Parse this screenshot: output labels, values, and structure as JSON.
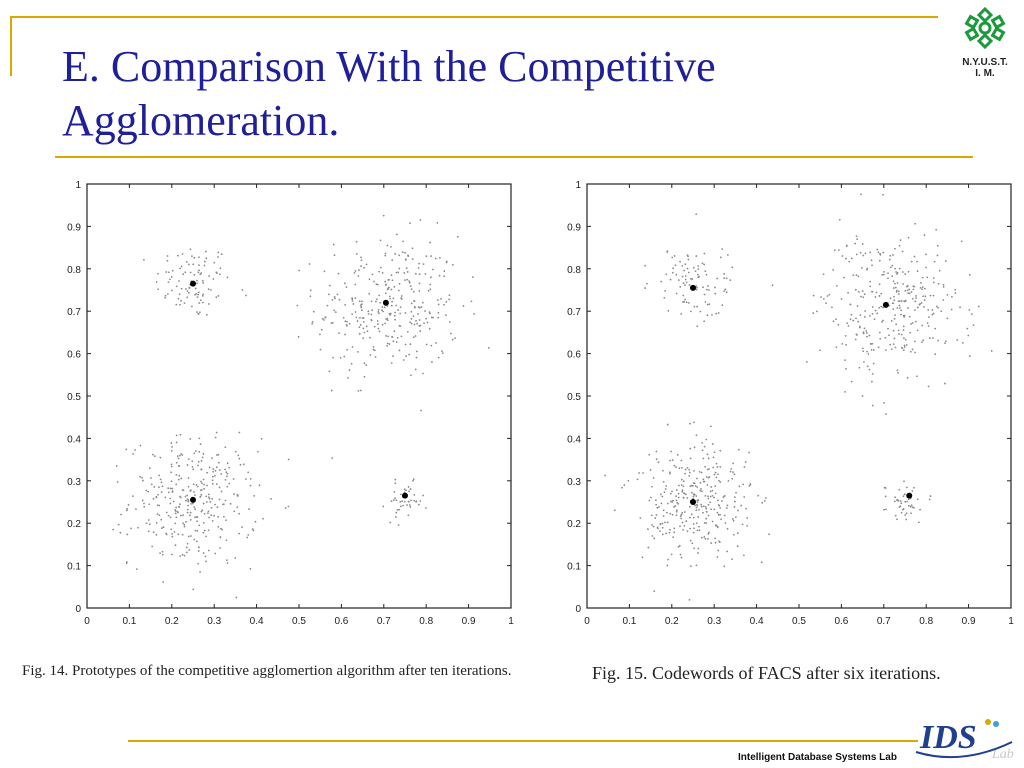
{
  "slide": {
    "title": "E. Comparison With the Competitive Agglomeration.",
    "logo_text": "N.Y.U.S.T.\nI. M.",
    "footer": "Intelligent Database Systems Lab",
    "ids_logo_text": "IDS",
    "ids_logo_sub": "Lab",
    "colors": {
      "accent_line": "#d9a900",
      "title": "#1f1f99",
      "logo_green": "#1a9a3a"
    }
  },
  "captions": [
    "Fig. 14.   Prototypes of the competitive agglomertion algorithm after ten iterations.",
    "Fig. 15.    Codewords of FACS after six iterations."
  ],
  "chart_data": [
    {
      "type": "scatter",
      "title": "",
      "xlabel": "",
      "ylabel": "",
      "xlim": [
        0,
        1
      ],
      "ylim": [
        0,
        1
      ],
      "xticks": [
        "0",
        "0.1",
        "0.2",
        "0.3",
        "0.4",
        "0.5",
        "0.6",
        "0.7",
        "0.8",
        "0.9",
        "1"
      ],
      "yticks": [
        "0",
        "0.1",
        "0.2",
        "0.3",
        "0.4",
        "0.5",
        "0.6",
        "0.7",
        "0.8",
        "0.9",
        "1"
      ],
      "grid": false,
      "point_clusters": [
        {
          "center": [
            0.25,
            0.77
          ],
          "spread": 0.045,
          "count": 95
        },
        {
          "center": [
            0.71,
            0.71
          ],
          "spread": 0.085,
          "count": 330
        },
        {
          "center": [
            0.25,
            0.25
          ],
          "spread": 0.075,
          "count": 330
        },
        {
          "center": [
            0.75,
            0.25
          ],
          "spread": 0.022,
          "count": 45
        }
      ],
      "prototypes": [
        {
          "x": 0.25,
          "y": 0.765
        },
        {
          "x": 0.705,
          "y": 0.72
        },
        {
          "x": 0.25,
          "y": 0.255
        },
        {
          "x": 0.75,
          "y": 0.265
        }
      ]
    },
    {
      "type": "scatter",
      "title": "",
      "xlabel": "",
      "ylabel": "",
      "xlim": [
        0,
        1
      ],
      "ylim": [
        0,
        1
      ],
      "xticks": [
        "0",
        "0.1",
        "0.2",
        "0.3",
        "0.4",
        "0.5",
        "0.6",
        "0.7",
        "0.8",
        "0.9",
        "1"
      ],
      "yticks": [
        "0",
        "0.1",
        "0.2",
        "0.3",
        "0.4",
        "0.5",
        "0.6",
        "0.7",
        "0.8",
        "0.9",
        "1"
      ],
      "grid": false,
      "point_clusters": [
        {
          "center": [
            0.25,
            0.77
          ],
          "spread": 0.045,
          "count": 95
        },
        {
          "center": [
            0.71,
            0.71
          ],
          "spread": 0.085,
          "count": 330
        },
        {
          "center": [
            0.25,
            0.25
          ],
          "spread": 0.075,
          "count": 330
        },
        {
          "center": [
            0.75,
            0.25
          ],
          "spread": 0.022,
          "count": 45
        }
      ],
      "prototypes": [
        {
          "x": 0.25,
          "y": 0.755
        },
        {
          "x": 0.705,
          "y": 0.715
        },
        {
          "x": 0.25,
          "y": 0.25
        },
        {
          "x": 0.76,
          "y": 0.265
        }
      ]
    }
  ]
}
